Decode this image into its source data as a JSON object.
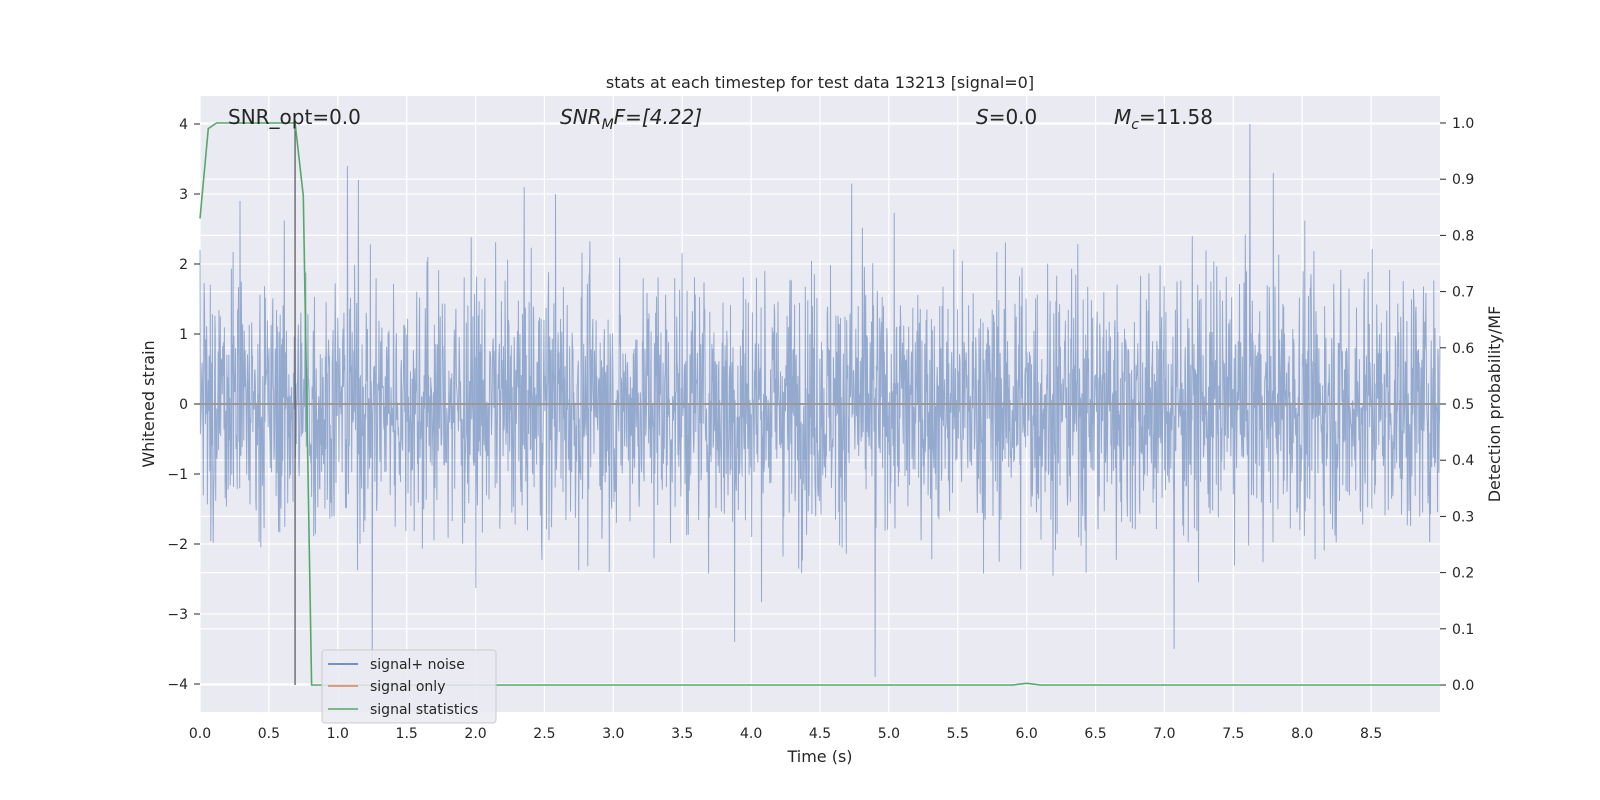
{
  "chart_data": {
    "type": "line",
    "title": "stats at each timestep for test data 13213 [signal=0]",
    "xlabel": "Time (s)",
    "ylabel_left": "Whitened strain",
    "ylabel_right": "Detection probability/MF",
    "xlim": [
      0.0,
      9.0
    ],
    "ylim_left": [
      -4.4,
      4.4
    ],
    "ylim_right": [
      -0.048,
      1.048
    ],
    "x_ticks": [
      0.0,
      0.5,
      1.0,
      1.5,
      2.0,
      2.5,
      3.0,
      3.5,
      4.0,
      4.5,
      5.0,
      5.5,
      6.0,
      6.5,
      7.0,
      7.5,
      8.0,
      8.5
    ],
    "x_tick_labels": [
      "0.0",
      "0.5",
      "1.0",
      "1.5",
      "2.0",
      "2.5",
      "3.0",
      "3.5",
      "4.0",
      "4.5",
      "5.0",
      "5.5",
      "6.0",
      "6.5",
      "7.0",
      "7.5",
      "8.0",
      "8.5"
    ],
    "y_left_ticks": [
      4,
      3,
      2,
      1,
      0,
      -1,
      -2,
      -3,
      -4
    ],
    "y_left_tick_labels": [
      "4",
      "3",
      "2",
      "1",
      "0",
      "−1",
      "−2",
      "−3",
      "−4"
    ],
    "y_right_ticks": [
      1.0,
      0.9,
      0.8,
      0.7,
      0.6,
      0.5,
      0.4,
      0.3,
      0.2,
      0.1,
      0.0
    ],
    "y_right_tick_labels": [
      "1.0",
      "0.9",
      "0.8",
      "0.7",
      "0.6",
      "0.5",
      "0.4",
      "0.3",
      "0.2",
      "0.1",
      "0.0"
    ],
    "grid": true,
    "legend_position": "lower-left",
    "annotations": {
      "snr_opt": "SNR_opt=0.0",
      "snr_mf_prefix": "SNR",
      "snr_mf_sub": "M",
      "snr_mf_suffix": "F=[4.22]",
      "s_var": "S",
      "s_value": "=0.0",
      "mc_var": "M",
      "mc_sub": "c",
      "mc_value": "=11.58"
    },
    "marker_line_x": 0.69,
    "series": [
      {
        "name": "signal+ noise",
        "color": "#4c72b0",
        "style": "dense noise trace, whitened strain roughly within [-4, 4]",
        "peaks": [
          {
            "x": 0.0,
            "y": 2.2
          },
          {
            "x": 0.29,
            "y": 2.9
          },
          {
            "x": 1.07,
            "y": 3.4
          },
          {
            "x": 1.15,
            "y": 3.2
          },
          {
            "x": 2.58,
            "y": 3.0
          },
          {
            "x": 4.73,
            "y": 3.15
          },
          {
            "x": 7.62,
            "y": 4.0
          },
          {
            "x": 7.79,
            "y": 3.3
          },
          {
            "x": 1.25,
            "y": -3.7
          },
          {
            "x": 3.88,
            "y": -3.4
          },
          {
            "x": 4.9,
            "y": -3.9
          },
          {
            "x": 7.07,
            "y": -3.5
          }
        ]
      },
      {
        "name": "signal only",
        "color": "#dd8452",
        "x": [
          0.0,
          9.0
        ],
        "y": [
          0.0,
          0.0
        ]
      },
      {
        "name": "signal statistics",
        "color": "#55a868",
        "x": [
          0.0,
          0.06,
          0.12,
          0.2,
          0.5,
          0.69,
          0.75,
          0.81,
          1.0,
          3.0,
          5.9,
          6.0,
          6.1,
          6.3,
          9.0
        ],
        "y": [
          0.83,
          0.99,
          1.0,
          1.0,
          1.0,
          1.0,
          0.87,
          0.0,
          0.0,
          0.0,
          0.0,
          0.003,
          0.0,
          0.0,
          0.0
        ]
      }
    ]
  }
}
